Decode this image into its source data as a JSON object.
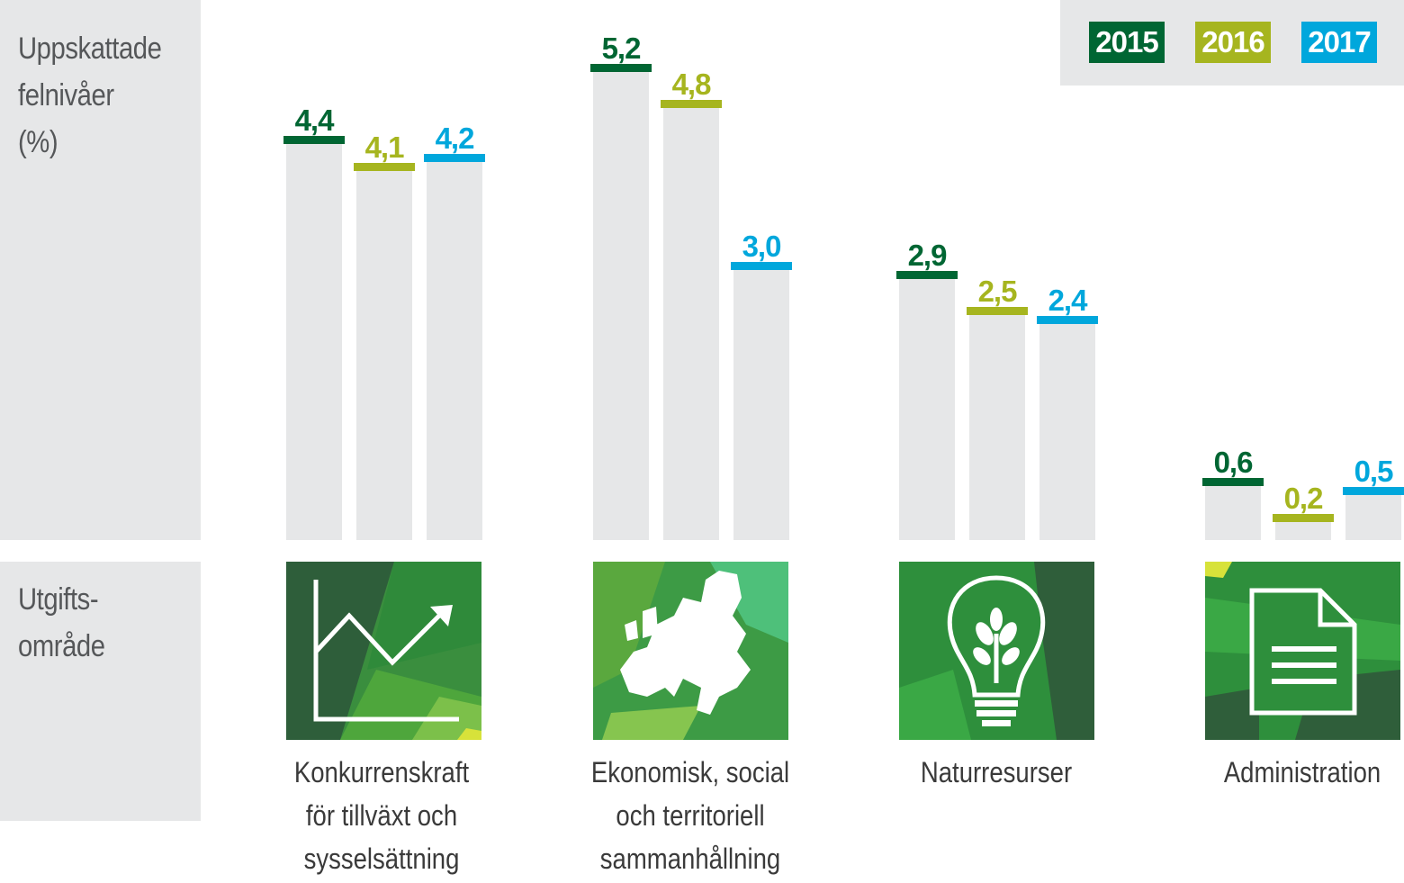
{
  "chart_data": {
    "type": "bar",
    "ylabel": [
      "Uppskattade",
      "felnivåer",
      "(%)"
    ],
    "xlabel": [
      "Utgifts-",
      "område"
    ],
    "ylim": [
      0,
      5.6
    ],
    "categories": [
      [
        "Konkurrenskraft",
        "för tillväxt och",
        "sysselsättning"
      ],
      [
        "Ekonomisk, social",
        "och territoriell",
        "sammanhållning"
      ],
      [
        "Naturresurser"
      ],
      [
        "Administration"
      ]
    ],
    "series": [
      {
        "name": "2015",
        "color": "#006633",
        "values": [
          4.4,
          5.2,
          2.9,
          0.6
        ],
        "labels": [
          "4,4",
          "5,2",
          "2,9",
          "0,6"
        ]
      },
      {
        "name": "2016",
        "color": "#a6b51f",
        "values": [
          4.1,
          4.8,
          2.5,
          0.2
        ],
        "labels": [
          "4,1",
          "4,8",
          "2,5",
          "0,2"
        ]
      },
      {
        "name": "2017",
        "color": "#00a7dc",
        "values": [
          4.2,
          3.0,
          2.4,
          0.5
        ],
        "labels": [
          "4,2",
          "3,0",
          "2,4",
          "0,5"
        ]
      }
    ],
    "icons": [
      "line-chart-icon",
      "europe-map-icon",
      "lightbulb-plant-icon",
      "document-icon"
    ]
  }
}
